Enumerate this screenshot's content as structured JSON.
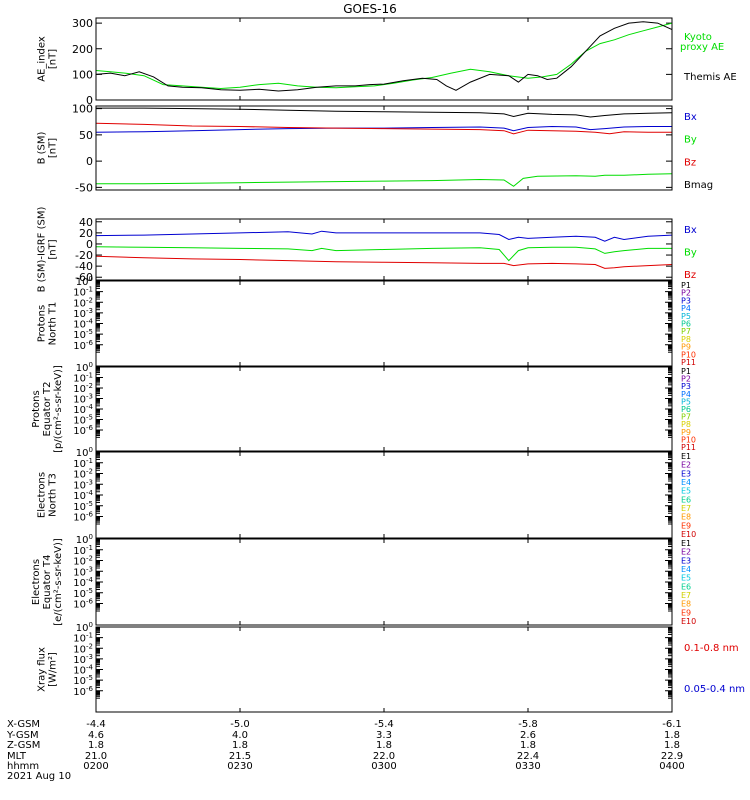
{
  "title": "GOES-16",
  "colors": {
    "black": "#000000",
    "red": "#e00000",
    "green": "#00dd00",
    "blue": "#0000d0",
    "prot": [
      "#000000",
      "#7a00a0",
      "#0000d0",
      "#0070ff",
      "#00b4d8",
      "#00c890",
      "#80d000",
      "#d8d000",
      "#ff9800",
      "#ff3000",
      "#d00000"
    ],
    "elec": [
      "#000000",
      "#7a00a0",
      "#0000d0",
      "#0090ff",
      "#00c8e0",
      "#00d090",
      "#d0d000",
      "#ff9800",
      "#ff3000",
      "#d00000"
    ]
  },
  "time_ticks": [
    0,
    30,
    60,
    90,
    120
  ],
  "panels": [
    {
      "id": "ae",
      "type": "line",
      "ylabel": [
        "AE_index",
        "[nT]"
      ],
      "ylim": [
        0,
        320
      ],
      "yticks": [
        0,
        100,
        200,
        300
      ],
      "ytick_labels": [
        "0",
        "100",
        "200",
        "300"
      ],
      "legend": [
        {
          "label": "Kyoto",
          "color": "#00dd00"
        },
        {
          "label": "proxy AE",
          "color": "#00dd00"
        },
        {
          "label": "Themis AE",
          "color": "#000000"
        }
      ],
      "series": [
        {
          "name": "Kyoto proxy AE",
          "color": "#00dd00",
          "x": [
            0,
            3,
            6,
            10,
            14,
            18,
            22,
            26,
            30,
            34,
            38,
            42,
            46,
            50,
            54,
            58,
            62,
            66,
            70,
            74,
            78,
            82,
            86,
            90,
            93,
            96,
            99,
            102,
            105,
            108,
            111,
            114,
            117,
            120
          ],
          "y": [
            115,
            110,
            105,
            95,
            60,
            55,
            50,
            45,
            50,
            60,
            65,
            55,
            50,
            48,
            52,
            55,
            65,
            78,
            88,
            105,
            120,
            110,
            95,
            85,
            90,
            100,
            140,
            190,
            220,
            235,
            255,
            270,
            285,
            300
          ]
        },
        {
          "name": "Themis AE",
          "color": "#000000",
          "x": [
            0,
            3,
            6,
            9,
            12,
            15,
            18,
            22,
            26,
            30,
            34,
            38,
            42,
            46,
            50,
            54,
            57,
            60,
            64,
            68,
            71,
            73,
            75,
            78,
            82,
            86,
            88,
            90,
            92,
            94,
            96,
            99,
            102,
            105,
            108,
            111,
            114,
            117,
            120
          ],
          "y": [
            100,
            105,
            95,
            110,
            90,
            55,
            50,
            48,
            40,
            38,
            42,
            35,
            40,
            50,
            55,
            55,
            60,
            62,
            75,
            85,
            80,
            55,
            38,
            70,
            100,
            95,
            70,
            100,
            95,
            80,
            85,
            130,
            190,
            250,
            280,
            300,
            305,
            300,
            275
          ]
        }
      ]
    },
    {
      "id": "b",
      "type": "line",
      "ylabel": [
        "B (SM)",
        "[nT]"
      ],
      "ylim": [
        -55,
        105
      ],
      "yticks": [
        -50,
        0,
        50,
        100
      ],
      "ytick_labels": [
        "-50",
        "0",
        "50",
        "100"
      ],
      "legend": [
        {
          "label": "Bx",
          "color": "#0000d0"
        },
        {
          "label": "By",
          "color": "#00dd00"
        },
        {
          "label": "Bz",
          "color": "#e00000"
        },
        {
          "label": "Bmag",
          "color": "#000000"
        }
      ],
      "series": [
        {
          "name": "Bx",
          "color": "#0000d0",
          "x": [
            0,
            10,
            20,
            30,
            40,
            50,
            60,
            70,
            80,
            85,
            87,
            90,
            95,
            100,
            103,
            106,
            110,
            115,
            120
          ],
          "y": [
            55,
            56,
            58,
            60,
            62,
            63,
            63,
            64,
            65,
            63,
            58,
            64,
            66,
            65,
            60,
            62,
            65,
            66,
            66
          ]
        },
        {
          "name": "By",
          "color": "#00dd00",
          "x": [
            0,
            10,
            20,
            30,
            40,
            50,
            60,
            70,
            80,
            85,
            87,
            89,
            92,
            100,
            104,
            106,
            110,
            115,
            120
          ],
          "y": [
            -43,
            -43,
            -42,
            -41,
            -40,
            -39,
            -38,
            -37,
            -35,
            -36,
            -48,
            -33,
            -29,
            -28,
            -29,
            -27,
            -27,
            -25,
            -24
          ]
        },
        {
          "name": "Bz",
          "color": "#e00000",
          "x": [
            0,
            10,
            20,
            30,
            40,
            50,
            60,
            70,
            80,
            85,
            87,
            90,
            95,
            100,
            104,
            107,
            110,
            115,
            120
          ],
          "y": [
            72,
            70,
            67,
            66,
            64,
            63,
            62,
            61,
            60,
            58,
            52,
            59,
            58,
            57,
            55,
            52,
            56,
            55,
            55
          ]
        },
        {
          "name": "Bmag",
          "color": "#000000",
          "x": [
            0,
            10,
            20,
            30,
            40,
            50,
            60,
            70,
            80,
            85,
            87,
            90,
            95,
            100,
            103,
            106,
            110,
            115,
            120
          ],
          "y": [
            101,
            101,
            100,
            99,
            97,
            95,
            94,
            93,
            92,
            90,
            85,
            91,
            89,
            88,
            84,
            87,
            90,
            91,
            92
          ]
        }
      ]
    },
    {
      "id": "db",
      "type": "line",
      "ylabel": [
        "B (SM)-IGRF (SM)",
        "[nT]"
      ],
      "ylim": [
        -65,
        45
      ],
      "yticks": [
        -60,
        -40,
        -20,
        0,
        20,
        40
      ],
      "ytick_labels": [
        "-60",
        "-40",
        "-20",
        "0",
        "20",
        "40"
      ],
      "legend": [
        {
          "label": "Bx",
          "color": "#0000d0"
        },
        {
          "label": "By",
          "color": "#00dd00"
        },
        {
          "label": "Bz",
          "color": "#e00000"
        }
      ],
      "series": [
        {
          "name": "Bx",
          "color": "#0000d0",
          "x": [
            0,
            10,
            20,
            30,
            40,
            45,
            47,
            50,
            60,
            70,
            80,
            84,
            86,
            88,
            90,
            95,
            100,
            104,
            106,
            108,
            110,
            115,
            120
          ],
          "y": [
            15,
            16,
            18,
            20,
            22,
            18,
            23,
            20,
            20,
            20,
            20,
            17,
            8,
            12,
            10,
            12,
            14,
            12,
            5,
            12,
            8,
            14,
            16
          ]
        },
        {
          "name": "By",
          "color": "#00dd00",
          "x": [
            0,
            10,
            20,
            30,
            40,
            45,
            47,
            50,
            60,
            70,
            80,
            84,
            86,
            88,
            90,
            95,
            100,
            104,
            106,
            108,
            110,
            115,
            120
          ],
          "y": [
            -5,
            -6,
            -7,
            -8,
            -9,
            -12,
            -8,
            -12,
            -10,
            -8,
            -7,
            -10,
            -30,
            -12,
            -7,
            -6,
            -6,
            -9,
            -17,
            -14,
            -12,
            -8,
            -8
          ]
        },
        {
          "name": "Bz",
          "color": "#e00000",
          "x": [
            0,
            10,
            20,
            30,
            40,
            50,
            60,
            70,
            80,
            85,
            87,
            90,
            95,
            100,
            104,
            106,
            108,
            110,
            115,
            120
          ],
          "y": [
            -22,
            -25,
            -27,
            -28,
            -30,
            -32,
            -33,
            -34,
            -35,
            -35,
            -39,
            -36,
            -35,
            -36,
            -37,
            -44,
            -43,
            -41,
            -39,
            -37
          ]
        }
      ]
    },
    {
      "id": "prot1",
      "type": "log-empty",
      "ylabel": [
        "Protons",
        "North T1"
      ],
      "ytick_exps": [
        0,
        -1,
        -2,
        -3,
        -4,
        -5,
        -6
      ],
      "legend_kind": "prot",
      "legend": [
        "P1",
        "P2",
        "P3",
        "P4",
        "P5",
        "P6",
        "P7",
        "P8",
        "P9",
        "P10",
        "P11"
      ]
    },
    {
      "id": "prot2",
      "type": "log-empty",
      "ylabel": [
        "Protons",
        "Equator T2",
        "[p/(cm²-s-sr-keV)]"
      ],
      "ytick_exps": [
        0,
        -1,
        -2,
        -3,
        -4,
        -5,
        -6
      ],
      "legend_kind": "prot",
      "legend": [
        "P1",
        "P2",
        "P3",
        "P4",
        "P5",
        "P6",
        "P7",
        "P8",
        "P9",
        "P10",
        "P11"
      ]
    },
    {
      "id": "elec1",
      "type": "log-empty",
      "ylabel": [
        "Electrons",
        "North T3"
      ],
      "ytick_exps": [
        0,
        -1,
        -2,
        -3,
        -4,
        -5,
        -6
      ],
      "legend_kind": "elec",
      "legend": [
        "E1",
        "E2",
        "E3",
        "E4",
        "E5",
        "E6",
        "E7",
        "E8",
        "E9",
        "E10"
      ]
    },
    {
      "id": "elec2",
      "type": "log-empty",
      "ylabel": [
        "Electrons",
        "Equator T4",
        "[e/(cm²-s-sr-keV)]"
      ],
      "ytick_exps": [
        0,
        -1,
        -2,
        -3,
        -4,
        -5,
        -6
      ],
      "legend_kind": "elec",
      "legend": [
        "E1",
        "E2",
        "E3",
        "E4",
        "E5",
        "E6",
        "E7",
        "E8",
        "E9",
        "E10"
      ]
    },
    {
      "id": "xray",
      "type": "log-empty",
      "ylabel": [
        "Xray flux",
        "[W/m²]"
      ],
      "ytick_exps": [
        0,
        -1,
        -2,
        -3,
        -4,
        -5,
        -6
      ],
      "legend_xray": [
        {
          "label": "0.1-0.8 nm",
          "color": "#e00000"
        },
        {
          "label": "0.05-0.4 nm",
          "color": "#0000d0"
        }
      ]
    }
  ],
  "ephemeris": {
    "labels": [
      "X-GSM",
      "Y-GSM",
      "Z-GSM",
      "MLT",
      "hhmm"
    ],
    "columns": [
      [
        "-4.4",
        "4.6",
        "1.8",
        "21.0",
        "0200"
      ],
      [
        "-5.0",
        "4.0",
        "1.8",
        "21.5",
        "0230"
      ],
      [
        "-5.4",
        "3.3",
        "1.8",
        "22.0",
        "0300"
      ],
      [
        "-5.8",
        "2.6",
        "1.8",
        "22.4",
        "0330"
      ],
      [
        "-6.1",
        "1.8",
        "1.8",
        "22.9",
        "0400"
      ]
    ],
    "date": "2021 Aug 10"
  }
}
